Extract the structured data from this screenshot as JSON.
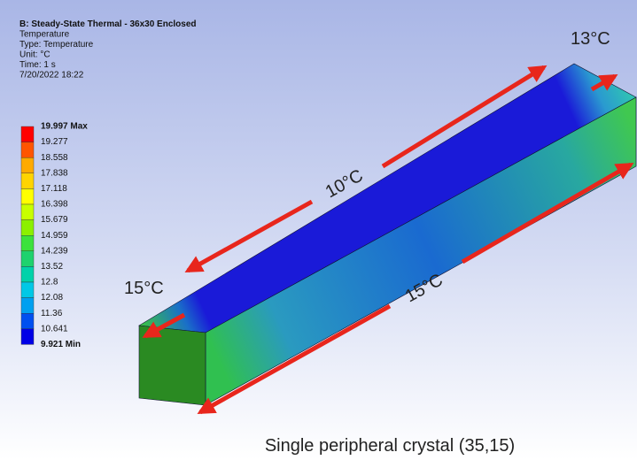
{
  "header": {
    "lines": [
      "B: Steady-State Thermal - 36x30 Enclosed",
      "Temperature",
      "Type: Temperature",
      "Unit: °C",
      "Time: 1 s",
      "7/20/2022 18:22"
    ]
  },
  "legend": {
    "labels": [
      "19.997 Max",
      "19.277",
      "18.558",
      "17.838",
      "17.118",
      "16.398",
      "15.679",
      "14.959",
      "14.239",
      "13.52",
      "12.8",
      "12.08",
      "11.36",
      "10.641",
      "9.921 Min"
    ],
    "colors": [
      "#ff0000",
      "#ff5500",
      "#ffaa00",
      "#ffd400",
      "#ffff00",
      "#c8ff00",
      "#8cf000",
      "#3ce23c",
      "#1ed26e",
      "#00d2aa",
      "#00c8e6",
      "#00a0f0",
      "#0050f0",
      "#0000e6"
    ]
  },
  "annotations": [
    "13°C",
    "10°C",
    "15°C",
    "15°C"
  ],
  "caption": "Single peripheral crystal (35,15)"
}
